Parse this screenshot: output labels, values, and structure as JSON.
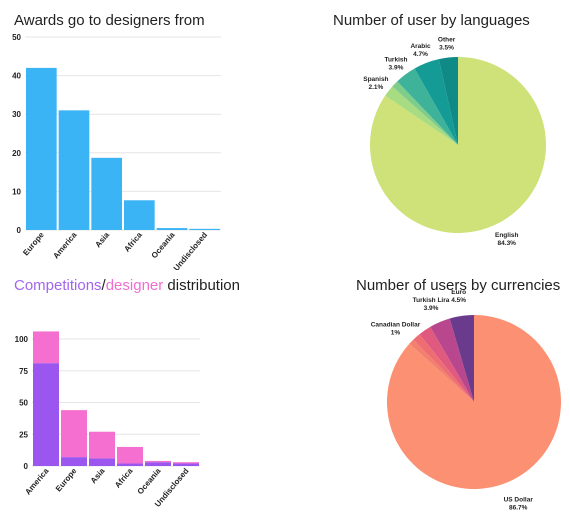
{
  "chart_data": [
    {
      "type": "bar",
      "title": "Awards go to designers from",
      "categories": [
        "Europe",
        "America",
        "Asia",
        "Africa",
        "Oceania",
        "Undisclosed"
      ],
      "values": [
        42,
        31,
        18.7,
        7.7,
        0.5,
        0.3
      ],
      "ylim": [
        0,
        50
      ],
      "yticks": [
        0,
        10,
        20,
        30,
        40,
        50
      ],
      "grid": true,
      "colors": {
        "bar": "#3bb4f6"
      }
    },
    {
      "type": "pie",
      "title": "Number of user by languages",
      "slices": [
        {
          "label": "English",
          "pct_label": "84.3%",
          "value": 84.3,
          "color": "#cfe27a"
        },
        {
          "label": "Spanish",
          "pct_label": "2.1%",
          "value": 2.1,
          "color": "#a8dc82"
        },
        {
          "label": "",
          "pct_label": "",
          "value": 1.3,
          "color": "#7fcd8a"
        },
        {
          "label": "Turkish",
          "pct_label": "3.9%",
          "value": 3.9,
          "color": "#3fb39a"
        },
        {
          "label": "Arabic",
          "pct_label": "4.7%",
          "value": 4.7,
          "color": "#159b95"
        },
        {
          "label": "Other",
          "pct_label": "3.5%",
          "value": 3.5,
          "color": "#0f8a86"
        }
      ]
    },
    {
      "type": "bar",
      "stacked": true,
      "title_parts": [
        "Competitions",
        "/",
        "designer",
        " distribution"
      ],
      "title_colors": [
        "#a265ef",
        "#222222",
        "#ef6fcf",
        "#222222"
      ],
      "categories": [
        "America",
        "Europe",
        "Asia",
        "Africa",
        "Oceania",
        "Undisclosed"
      ],
      "series": [
        {
          "values": [
            81,
            7,
            6,
            2,
            3,
            2
          ],
          "color": "#9b56ef"
        },
        {
          "values": [
            25,
            37,
            21,
            13,
            1,
            1
          ],
          "color": "#f46fcf"
        }
      ],
      "ylim": [
        0,
        115
      ],
      "yticks": [
        0,
        25,
        50,
        75,
        100
      ],
      "grid": true
    },
    {
      "type": "pie",
      "title": "Number of users by currencies",
      "slices": [
        {
          "label": "US Dollar",
          "pct_label": "86.7%",
          "value": 86.7,
          "color": "#fb9072"
        },
        {
          "label": "Canadian Dollar",
          "pct_label": "1%",
          "value": 1.0,
          "color": "#f37f6e"
        },
        {
          "label": "",
          "pct_label": "",
          "value": 1.5,
          "color": "#ee6d73"
        },
        {
          "label": "",
          "pct_label": "",
          "value": 2.4,
          "color": "#df5a7e"
        },
        {
          "label": "Turkish Lira",
          "pct_label": "3.9%",
          "value": 3.9,
          "color": "#b9478d"
        },
        {
          "label": "Euro",
          "pct_label": "4.5%",
          "value": 4.5,
          "color": "#6a3a8c"
        }
      ]
    }
  ]
}
